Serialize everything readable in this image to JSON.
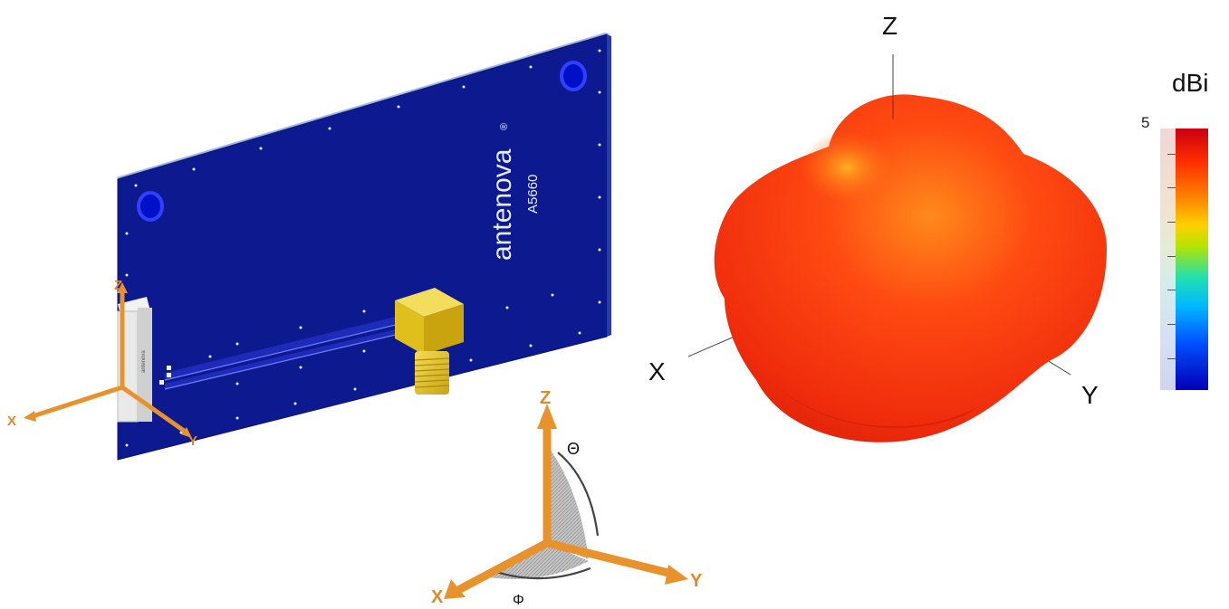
{
  "pcb": {
    "brand": "antenova",
    "registered_mark": "®",
    "part_number": "A5660",
    "small_antenna_text": "antenova",
    "axis_labels": {
      "x": "X",
      "y": "Y",
      "z": "Z"
    }
  },
  "coordinate_system": {
    "axis_labels": {
      "x": "X",
      "y": "Y",
      "z": "Z"
    },
    "theta_label": "Θ",
    "phi_label": "Φ"
  },
  "pattern": {
    "axis_labels": {
      "x": "X",
      "y": "Y",
      "z": "Z"
    }
  },
  "colorbar": {
    "unit_label": "dBi",
    "top_tick": "5",
    "colors": [
      "#c80010",
      "#ff2a00",
      "#ff7a00",
      "#ffd000",
      "#b5e400",
      "#21e0b0",
      "#00b8ff",
      "#0050ff",
      "#0000b5"
    ]
  },
  "colors": {
    "pcb_blue": "#0d1a8f",
    "connector_gold": "#e6c21f",
    "axis_orange": "#e8922c",
    "pattern_red": "#f0300f"
  }
}
